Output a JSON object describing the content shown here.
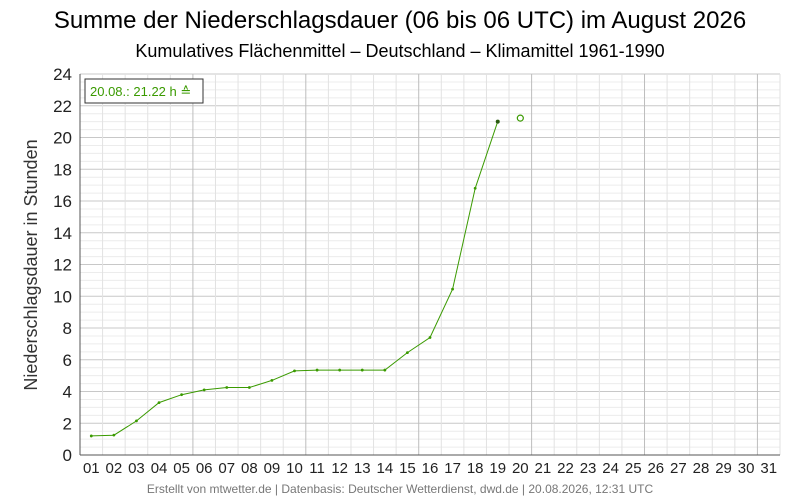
{
  "chart_data": {
    "type": "line",
    "title": "Summe der Niederschlagsdauer (06 bis 06 UTC) im August 2026",
    "subtitle": "Kumulatives Flächenmittel – Deutschland – Klimamittel 1961-1990",
    "ylabel": "Niederschlagsdauer in Stunden",
    "xlabel": "",
    "ylim": [
      0,
      24
    ],
    "y_ticks": [
      0,
      2,
      4,
      6,
      8,
      10,
      12,
      14,
      16,
      18,
      20,
      22,
      24
    ],
    "x_categories": [
      "01",
      "02",
      "03",
      "04",
      "05",
      "06",
      "07",
      "08",
      "09",
      "10",
      "11",
      "12",
      "13",
      "14",
      "15",
      "16",
      "17",
      "18",
      "19",
      "20",
      "21",
      "22",
      "23",
      "24",
      "25",
      "26",
      "27",
      "28",
      "29",
      "30",
      "31"
    ],
    "grid": true,
    "line_color": "#3a9a00",
    "series": [
      {
        "x": [
          "01",
          "02",
          "03",
          "04",
          "05",
          "06",
          "07",
          "08",
          "09",
          "10",
          "11",
          "12",
          "13",
          "14",
          "15",
          "16",
          "17",
          "18",
          "19"
        ],
        "values": [
          1.2,
          1.25,
          2.15,
          3.3,
          3.8,
          4.1,
          4.25,
          4.25,
          4.7,
          5.3,
          5.35,
          5.35,
          5.35,
          5.35,
          6.45,
          7.4,
          10.45,
          16.8,
          21.0
        ]
      }
    ],
    "current_point": {
      "x": "20",
      "value": 21.22
    },
    "legend": {
      "text": "20.08.: 21.22 h ≙",
      "placement": "top-left"
    },
    "footer": "Erstellt von mtwetter.de | Datenbasis: Deutscher Wetterdienst, dwd.de | 20.08.2026, 12:31 UTC"
  }
}
